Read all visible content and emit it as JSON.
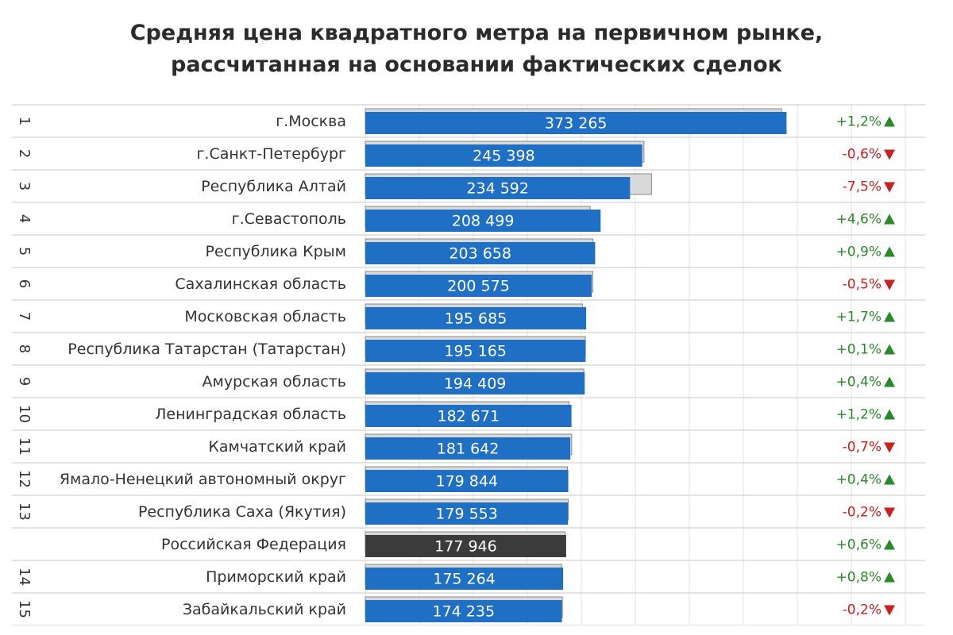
{
  "title_lines": [
    "Средняя цена квадратного метра на первичном рынке,",
    "рассчитанная на основании фактических сделок"
  ],
  "colors": {
    "bar": "#1f6fc4",
    "bar_highlight": "#3b3b3b",
    "shadow_bar": "#d9d9d9",
    "positive": "#2a8a2a",
    "negative": "#cc1f1f",
    "row_line": "#d4d4d4",
    "grid": "#e0e0e0"
  },
  "chart_data": {
    "type": "bar",
    "orientation": "horizontal",
    "value_unit_hint": "",
    "categories": [
      "г.Москва",
      "г.Санкт-Петербург",
      "Республика Алтай",
      "г.Севастополь",
      "Республика Крым",
      "Сахалинская область",
      "Московская область",
      "Республика Татарстан (Татарстан)",
      "Амурская область",
      "Ленинградская область",
      "Камчатский край",
      "Ямало-Ненецкий автономный округ",
      "Республика Саха (Якутия)",
      "Российская Федерация",
      "Приморский край",
      "Забайкальский край"
    ],
    "ranks": [
      "1",
      "2",
      "3",
      "4",
      "5",
      "6",
      "7",
      "8",
      "9",
      "10",
      "11",
      "12",
      "13",
      "",
      "14",
      "15"
    ],
    "values": [
      373265,
      245398,
      234592,
      208499,
      203658,
      200575,
      195685,
      195165,
      194409,
      182671,
      181642,
      179844,
      179553,
      177946,
      175264,
      174235
    ],
    "value_labels": [
      "373 265",
      "245 398",
      "234 592",
      "208 499",
      "203 658",
      "200 575",
      "195 685",
      "195 165",
      "194 409",
      "182 671",
      "181 642",
      "179 844",
      "179 553",
      "177 946",
      "175 264",
      "174 235"
    ],
    "previous_values": [
      368800,
      246900,
      253600,
      199300,
      201800,
      201600,
      192400,
      195000,
      193600,
      180500,
      182900,
      179100,
      179900,
      176900,
      173900,
      174600
    ],
    "changes": [
      "+1,2%",
      "-0,6%",
      "-7,5%",
      "+4,6%",
      "+0,9%",
      "-0,5%",
      "+1,7%",
      "+0,1%",
      "+0,4%",
      "+1,2%",
      "-0,7%",
      "+0,4%",
      "-0,2%",
      "+0,6%",
      "+0,8%",
      "-0,2%"
    ],
    "directions": [
      "up",
      "down",
      "down",
      "up",
      "up",
      "down",
      "up",
      "up",
      "up",
      "up",
      "down",
      "up",
      "down",
      "up",
      "up",
      "down"
    ],
    "highlight_index": 13,
    "xlim": [
      0,
      380000
    ],
    "grid": true
  }
}
